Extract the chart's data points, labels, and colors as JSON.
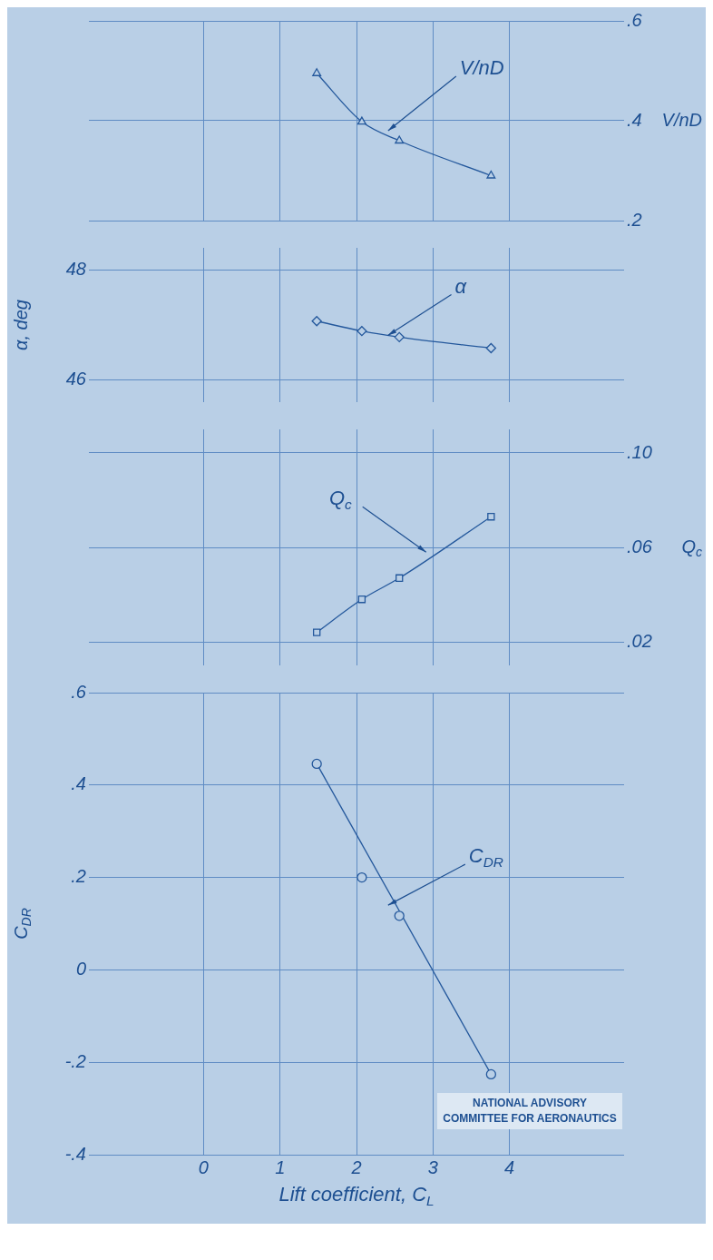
{
  "chart_data": [
    {
      "type": "line",
      "x": [
        1.48,
        2.07,
        2.56,
        3.76
      ],
      "xlim": [
        -1.5,
        5.5
      ],
      "xticks": [
        0,
        1,
        2,
        3,
        4
      ],
      "y2lim": [
        0.2,
        0.6
      ],
      "y2ticks": [
        {
          "value": 0.2,
          "label": ".2"
        },
        {
          "value": 0.4,
          "label": ".4"
        },
        {
          "value": 0.6,
          "label": ".6"
        }
      ],
      "y2label": "V/nD",
      "tick_labels": "y",
      "grid": true,
      "legend": false,
      "series": [
        {
          "color": "#24589c",
          "values": [
            0.495,
            0.398,
            0.36,
            0.29
          ],
          "axis": "y2",
          "marker": "triangle"
        }
      ],
      "annotations": [
        "V/nD"
      ]
    },
    {
      "type": "line",
      "x": [
        1.48,
        2.07,
        2.56,
        3.76
      ],
      "xlim": [
        -1.5,
        5.5
      ],
      "xticks": [
        0,
        1,
        2,
        3,
        4
      ],
      "ylim": [
        45.6,
        48.4
      ],
      "yticks": [
        46,
        48
      ],
      "ylabel": "α, deg",
      "tick_labels": "y",
      "grid": true,
      "legend": false,
      "series": [
        {
          "color": "#24589c",
          "values": [
            47.07,
            46.89,
            46.78,
            46.58
          ],
          "marker": "diamond"
        }
      ],
      "annotations": [
        {
          "text": "α",
          "x": 2.41,
          "y": 46.81
        }
      ]
    },
    {
      "type": "line",
      "x": [
        1.48,
        2.07,
        2.56,
        3.76
      ],
      "xlim": [
        -1.5,
        5.5
      ],
      "xticks": [
        0,
        1,
        2,
        3,
        4
      ],
      "y2lim": [
        0.01,
        0.11
      ],
      "y2ticks": [
        {
          "value": 0.02,
          "label": ".02"
        },
        {
          "value": 0.06,
          "label": ".06"
        },
        {
          "value": 0.1,
          "label": ".10"
        }
      ],
      "y2label": "Q$_{c}$",
      "tick_labels": "y",
      "grid": true,
      "legend": false,
      "series": [
        {
          "color": "#24589c",
          "values": [
            0.024,
            0.038,
            0.047,
            0.073
          ],
          "axis": "y2",
          "marker": "square"
        }
      ],
      "annotations": [
        "Q$_{c}$"
      ]
    },
    {
      "type": "scatter",
      "x": [
        1.48,
        2.07,
        2.56,
        3.76
      ],
      "xlim": [
        -1.5,
        5.5
      ],
      "xticks": [
        0,
        1,
        2,
        3,
        4
      ],
      "xlabel": "Lift coefficient, C$_{L}$",
      "ylim": [
        -0.4,
        0.6
      ],
      "yticks": [
        {
          "value": -0.4,
          "label": "-.4"
        },
        {
          "value": -0.2,
          "label": "-.2"
        },
        0,
        {
          "value": 0.2,
          "label": ".2"
        },
        {
          "value": 0.4,
          "label": ".4"
        },
        {
          "value": 0.6,
          "label": ".6"
        }
      ],
      "ylabel": "C$_{DR}$",
      "grid": true,
      "legend": false,
      "series": [
        {
          "color": "#24589c",
          "values": [
            0.446,
            0.2,
            0.117,
            -0.226
          ],
          "marker": "circle"
        },
        {
          "type": "line",
          "color": "#24589c",
          "x": [
            1.48,
            3.76
          ],
          "values": [
            0.446,
            -0.226
          ],
          "marker": "none"
        }
      ],
      "annotations": [
        "C$_{DR}$",
        "NATIONAL ADVISORY COMMITTEE FOR AERONAUTICS"
      ]
    }
  ]
}
